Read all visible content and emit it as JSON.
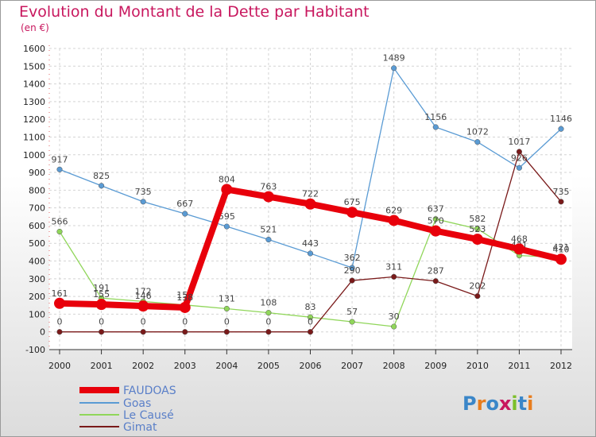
{
  "chart_data": {
    "type": "line",
    "title": "Evolution du Montant de la Dette par Habitant",
    "subtitle": "(en €)",
    "x": [
      "2000",
      "2001",
      "2002",
      "2003",
      "2004",
      "2005",
      "2006",
      "2007",
      "2008",
      "2009",
      "2010",
      "2011",
      "2012"
    ],
    "ylim": [
      -100,
      1600
    ],
    "yticks": [
      -100,
      0,
      100,
      200,
      300,
      400,
      500,
      600,
      700,
      800,
      900,
      1000,
      1100,
      1200,
      1300,
      1400,
      1500,
      1600
    ],
    "grid": true,
    "legend_position": "bottom-left",
    "series": [
      {
        "name": "FAUDOAS",
        "color": "#e8000b",
        "values": [
          161,
          155,
          146,
          138,
          804,
          763,
          722,
          675,
          629,
          570,
          523,
          468,
          410
        ]
      },
      {
        "name": "Goas",
        "color": "#5a9bd4",
        "values": [
          917,
          825,
          735,
          667,
          595,
          521,
          443,
          362,
          1489,
          1156,
          1072,
          926,
          1146
        ]
      },
      {
        "name": "Le Causé",
        "color": "#90d65a",
        "values": [
          566,
          191,
          172,
          152,
          131,
          108,
          83,
          57,
          30,
          637,
          582,
          431,
          421
        ]
      },
      {
        "name": "Gimat",
        "color": "#7a1a1a",
        "values": [
          0,
          0,
          0,
          0,
          0,
          0,
          0,
          290,
          311,
          287,
          202,
          1017,
          735
        ]
      }
    ]
  },
  "logo": {
    "text": "Proxiti",
    "colors": [
      "#3a86c8",
      "#e87d1e",
      "#3a86c8",
      "#c8175e",
      "#7cbf2a",
      "#3a86c8",
      "#e87d1e"
    ]
  }
}
